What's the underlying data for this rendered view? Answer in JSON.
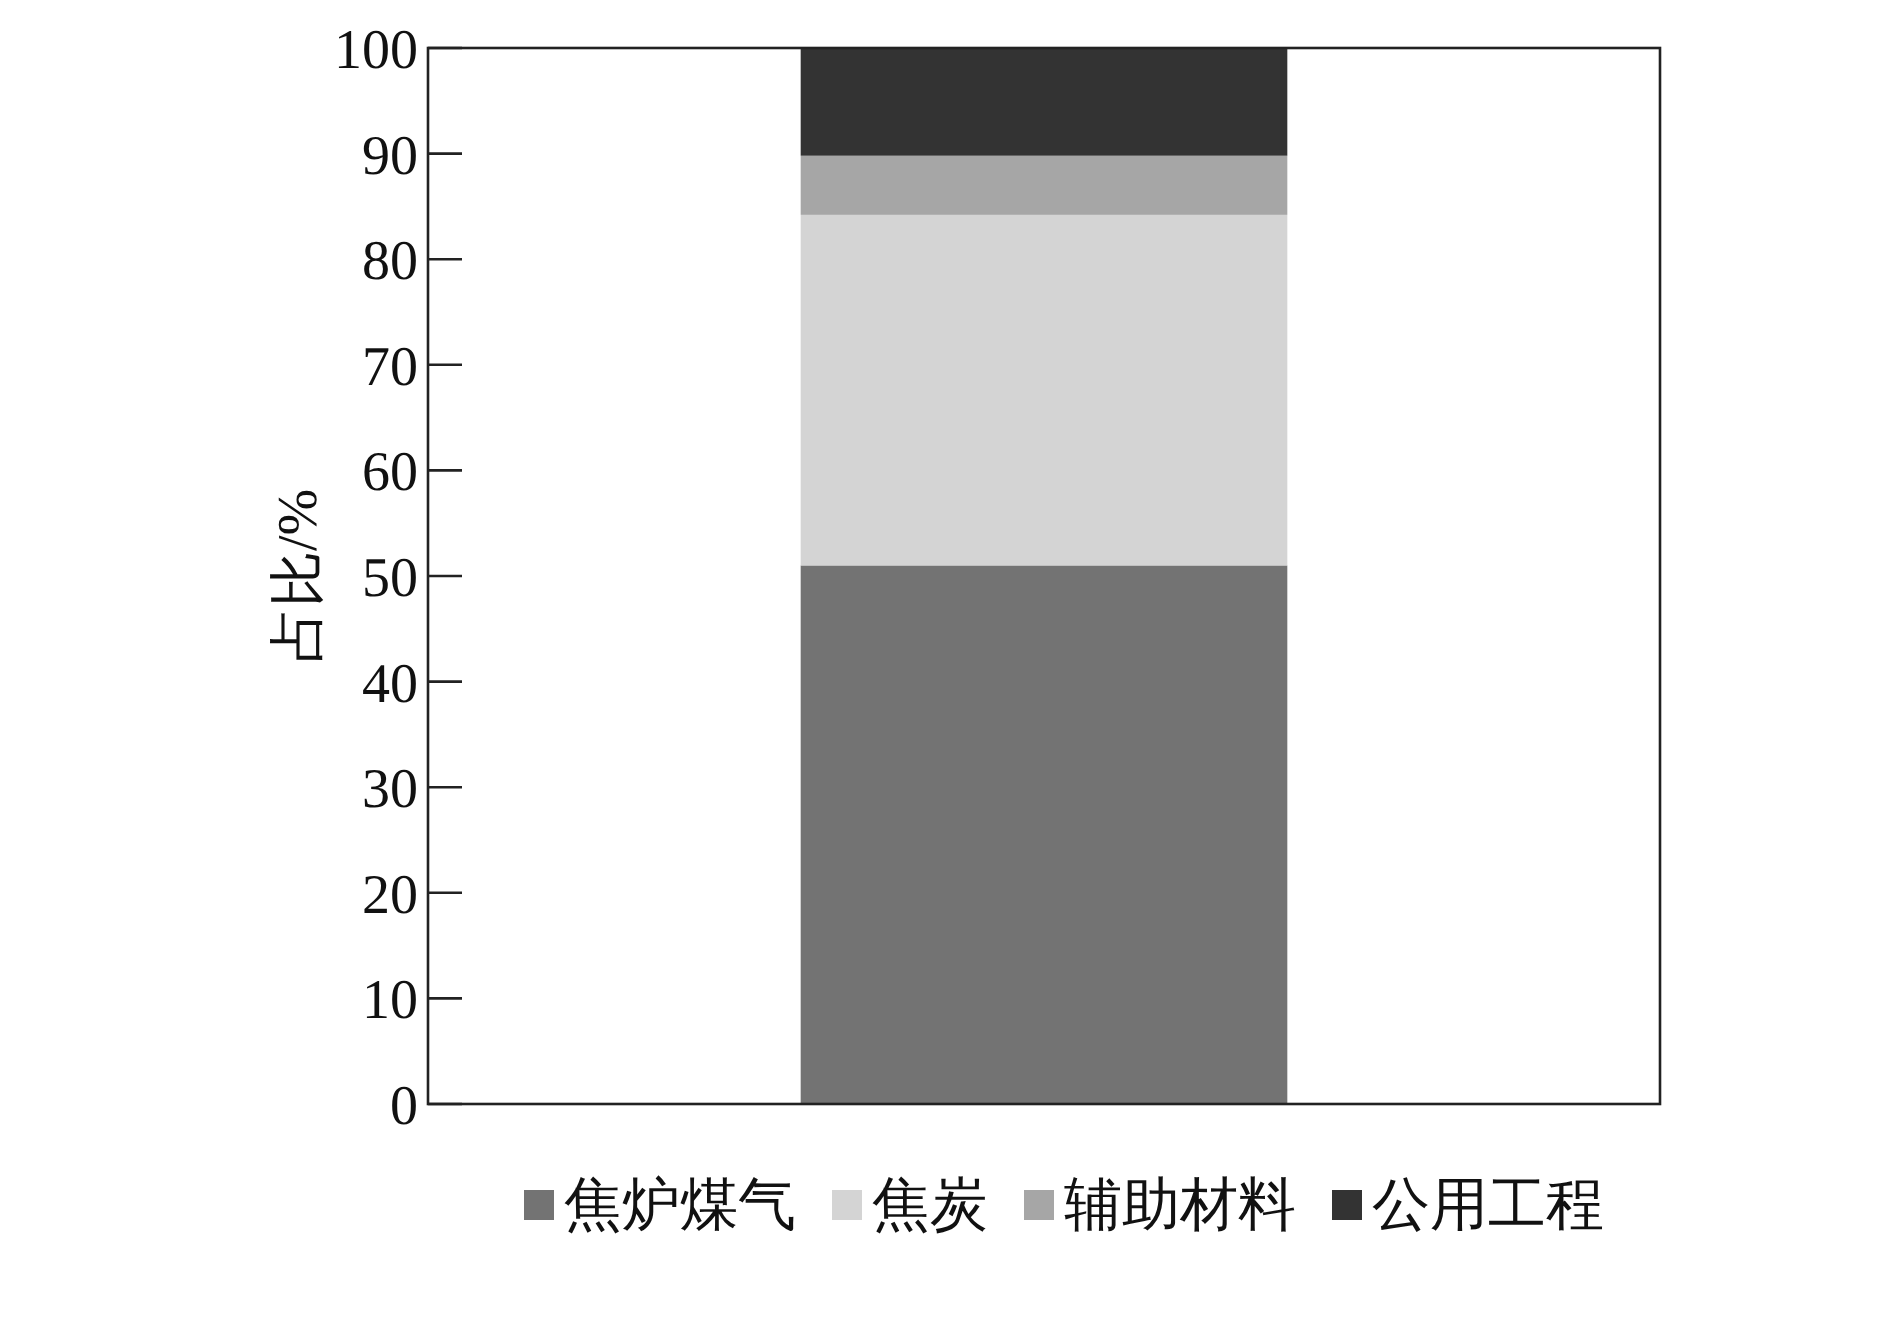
{
  "chart_data": {
    "type": "bar",
    "stacked": true,
    "categories": [
      null
    ],
    "ylabel": "占比/%",
    "ylim": [
      0,
      100
    ],
    "yticks": [
      0,
      10,
      20,
      30,
      40,
      50,
      60,
      70,
      80,
      90,
      100
    ],
    "legend": "bottom",
    "series": [
      {
        "name": "焦炉煤气",
        "color": "#737373",
        "values": [
          51.0
        ]
      },
      {
        "name": "焦炭",
        "color": "#d4d4d4",
        "values": [
          33.2
        ]
      },
      {
        "name": "辅助材料",
        "color": "#a6a6a6",
        "values": [
          5.6
        ]
      },
      {
        "name": "公用工程",
        "color": "#333333",
        "values": [
          10.2
        ]
      }
    ]
  }
}
